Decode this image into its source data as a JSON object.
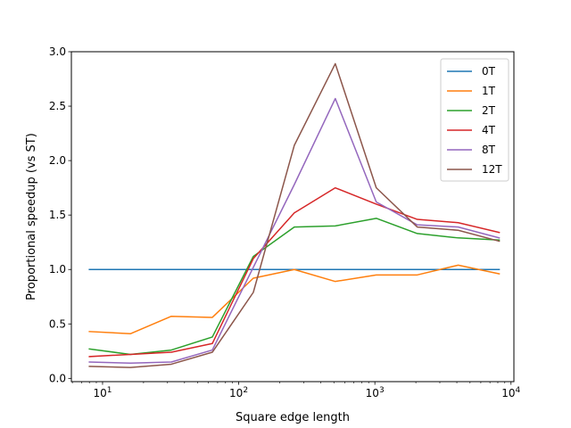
{
  "chart_data": {
    "type": "line",
    "xlabel": "Square edge length",
    "ylabel": "Proportional speedup (vs ST)",
    "xscale": "log",
    "xlim": [
      5.9,
      10500
    ],
    "ylim": [
      -0.03,
      3.0
    ],
    "grid": false,
    "legend_position": "top-right",
    "x": [
      8,
      16,
      32,
      64,
      128,
      256,
      512,
      1024,
      2048,
      4096,
      8192
    ],
    "x_ticks": [
      {
        "value": 10,
        "base": "10",
        "exp": "1"
      },
      {
        "value": 100,
        "base": "10",
        "exp": "2"
      },
      {
        "value": 1000,
        "base": "10",
        "exp": "3"
      },
      {
        "value": 10000,
        "base": "10",
        "exp": "4"
      }
    ],
    "y_ticks": [
      {
        "value": 0.0,
        "label": "0.0"
      },
      {
        "value": 0.5,
        "label": "0.5"
      },
      {
        "value": 1.0,
        "label": "1.0"
      },
      {
        "value": 1.5,
        "label": "1.5"
      },
      {
        "value": 2.0,
        "label": "2.0"
      },
      {
        "value": 2.5,
        "label": "2.5"
      },
      {
        "value": 3.0,
        "label": "3.0"
      }
    ],
    "series": [
      {
        "name": "0T",
        "color": "#1f77b4",
        "values": [
          1.0,
          1.0,
          1.0,
          1.0,
          1.0,
          1.0,
          1.0,
          1.0,
          1.0,
          1.0,
          1.0
        ]
      },
      {
        "name": "1T",
        "color": "#ff7f0e",
        "values": [
          0.43,
          0.41,
          0.57,
          0.56,
          0.92,
          1.0,
          0.89,
          0.95,
          0.95,
          1.04,
          0.96
        ]
      },
      {
        "name": "2T",
        "color": "#2ca02c",
        "values": [
          0.27,
          0.22,
          0.26,
          0.38,
          1.12,
          1.39,
          1.4,
          1.47,
          1.33,
          1.29,
          1.27
        ]
      },
      {
        "name": "4T",
        "color": "#d62728",
        "values": [
          0.2,
          0.22,
          0.24,
          0.32,
          1.1,
          1.52,
          1.75,
          1.6,
          1.46,
          1.43,
          1.34
        ]
      },
      {
        "name": "8T",
        "color": "#9467bd",
        "values": [
          0.15,
          0.14,
          0.15,
          0.26,
          1.02,
          1.78,
          2.57,
          1.62,
          1.41,
          1.39,
          1.29
        ]
      },
      {
        "name": "12T",
        "color": "#8c564b",
        "values": [
          0.11,
          0.1,
          0.13,
          0.24,
          0.79,
          2.14,
          2.89,
          1.75,
          1.39,
          1.36,
          1.26
        ]
      }
    ]
  }
}
